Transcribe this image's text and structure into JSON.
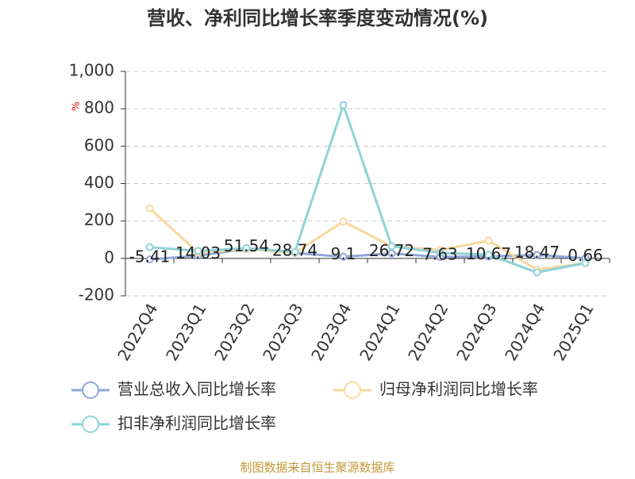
{
  "chart_data": {
    "type": "line",
    "title": "营收、净利同比增长率季度变动情况(%)",
    "y_label": "%",
    "source": "制图数据来自恒生聚源数据库",
    "categories": [
      "2022Q4",
      "2023Q1",
      "2023Q2",
      "2023Q3",
      "2023Q4",
      "2024Q1",
      "2024Q2",
      "2024Q3",
      "2024Q4",
      "2025Q1"
    ],
    "series": [
      {
        "name": "营业总收入同比增长率",
        "color": "#8fa8d8",
        "values": [
          -5.41,
          14.03,
          51.54,
          28.74,
          9.1,
          26.72,
          7.63,
          10.67,
          18.47,
          0.66
        ]
      },
      {
        "name": "归母净利润同比增长率",
        "color": "#fad89c",
        "values": [
          268,
          30,
          50,
          30,
          197,
          65,
          45,
          95,
          -60,
          -25
        ]
      },
      {
        "name": "扣非净利润同比增长率",
        "color": "#8dd3d8",
        "values": [
          60,
          40,
          55,
          35,
          820,
          65,
          30,
          20,
          -75,
          -25
        ]
      }
    ],
    "ylim": [
      -200,
      1000
    ],
    "yticks": [
      -200,
      0,
      200,
      400,
      600,
      800,
      {
        "value": 1000,
        "label": "1,000"
      }
    ],
    "grid": true
  }
}
